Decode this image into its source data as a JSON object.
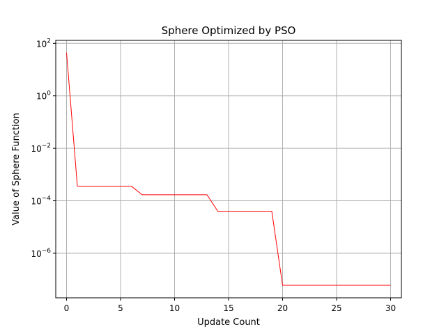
{
  "chart_data": {
    "type": "line",
    "title": "Sphere Optimized by PSO",
    "xlabel": "Update Count",
    "ylabel": "Value of Sphere Function",
    "xscale": "linear",
    "yscale": "log",
    "xlim": [
      -1,
      31
    ],
    "ylim": [
      2e-08,
      130
    ],
    "x_ticks": [
      0,
      5,
      10,
      15,
      20,
      25,
      30
    ],
    "y_ticks": [
      {
        "value": 1e-06,
        "base": "10",
        "exp": "−6"
      },
      {
        "value": 0.0001,
        "base": "10",
        "exp": "−4"
      },
      {
        "value": 0.01,
        "base": "10",
        "exp": "−2"
      },
      {
        "value": 1,
        "base": "10",
        "exp": "0"
      },
      {
        "value": 100,
        "base": "10",
        "exp": "2"
      }
    ],
    "grid": true,
    "series": [
      {
        "color": "#ff0000",
        "x": [
          0,
          1,
          2,
          3,
          4,
          5,
          6,
          7,
          8,
          9,
          10,
          11,
          12,
          13,
          14,
          15,
          16,
          17,
          18,
          19,
          20,
          21,
          22,
          23,
          24,
          25,
          26,
          27,
          28,
          29,
          30
        ],
        "y": [
          44,
          0.00036,
          0.00036,
          0.00036,
          0.00036,
          0.00036,
          0.00036,
          0.00017,
          0.00017,
          0.00017,
          0.00017,
          0.00017,
          0.00017,
          0.00017,
          4e-05,
          4e-05,
          4e-05,
          4e-05,
          4e-05,
          4e-05,
          6e-08,
          6e-08,
          6e-08,
          6e-08,
          6e-08,
          6e-08,
          6e-08,
          6e-08,
          6e-08,
          6e-08,
          6e-08
        ]
      }
    ]
  }
}
